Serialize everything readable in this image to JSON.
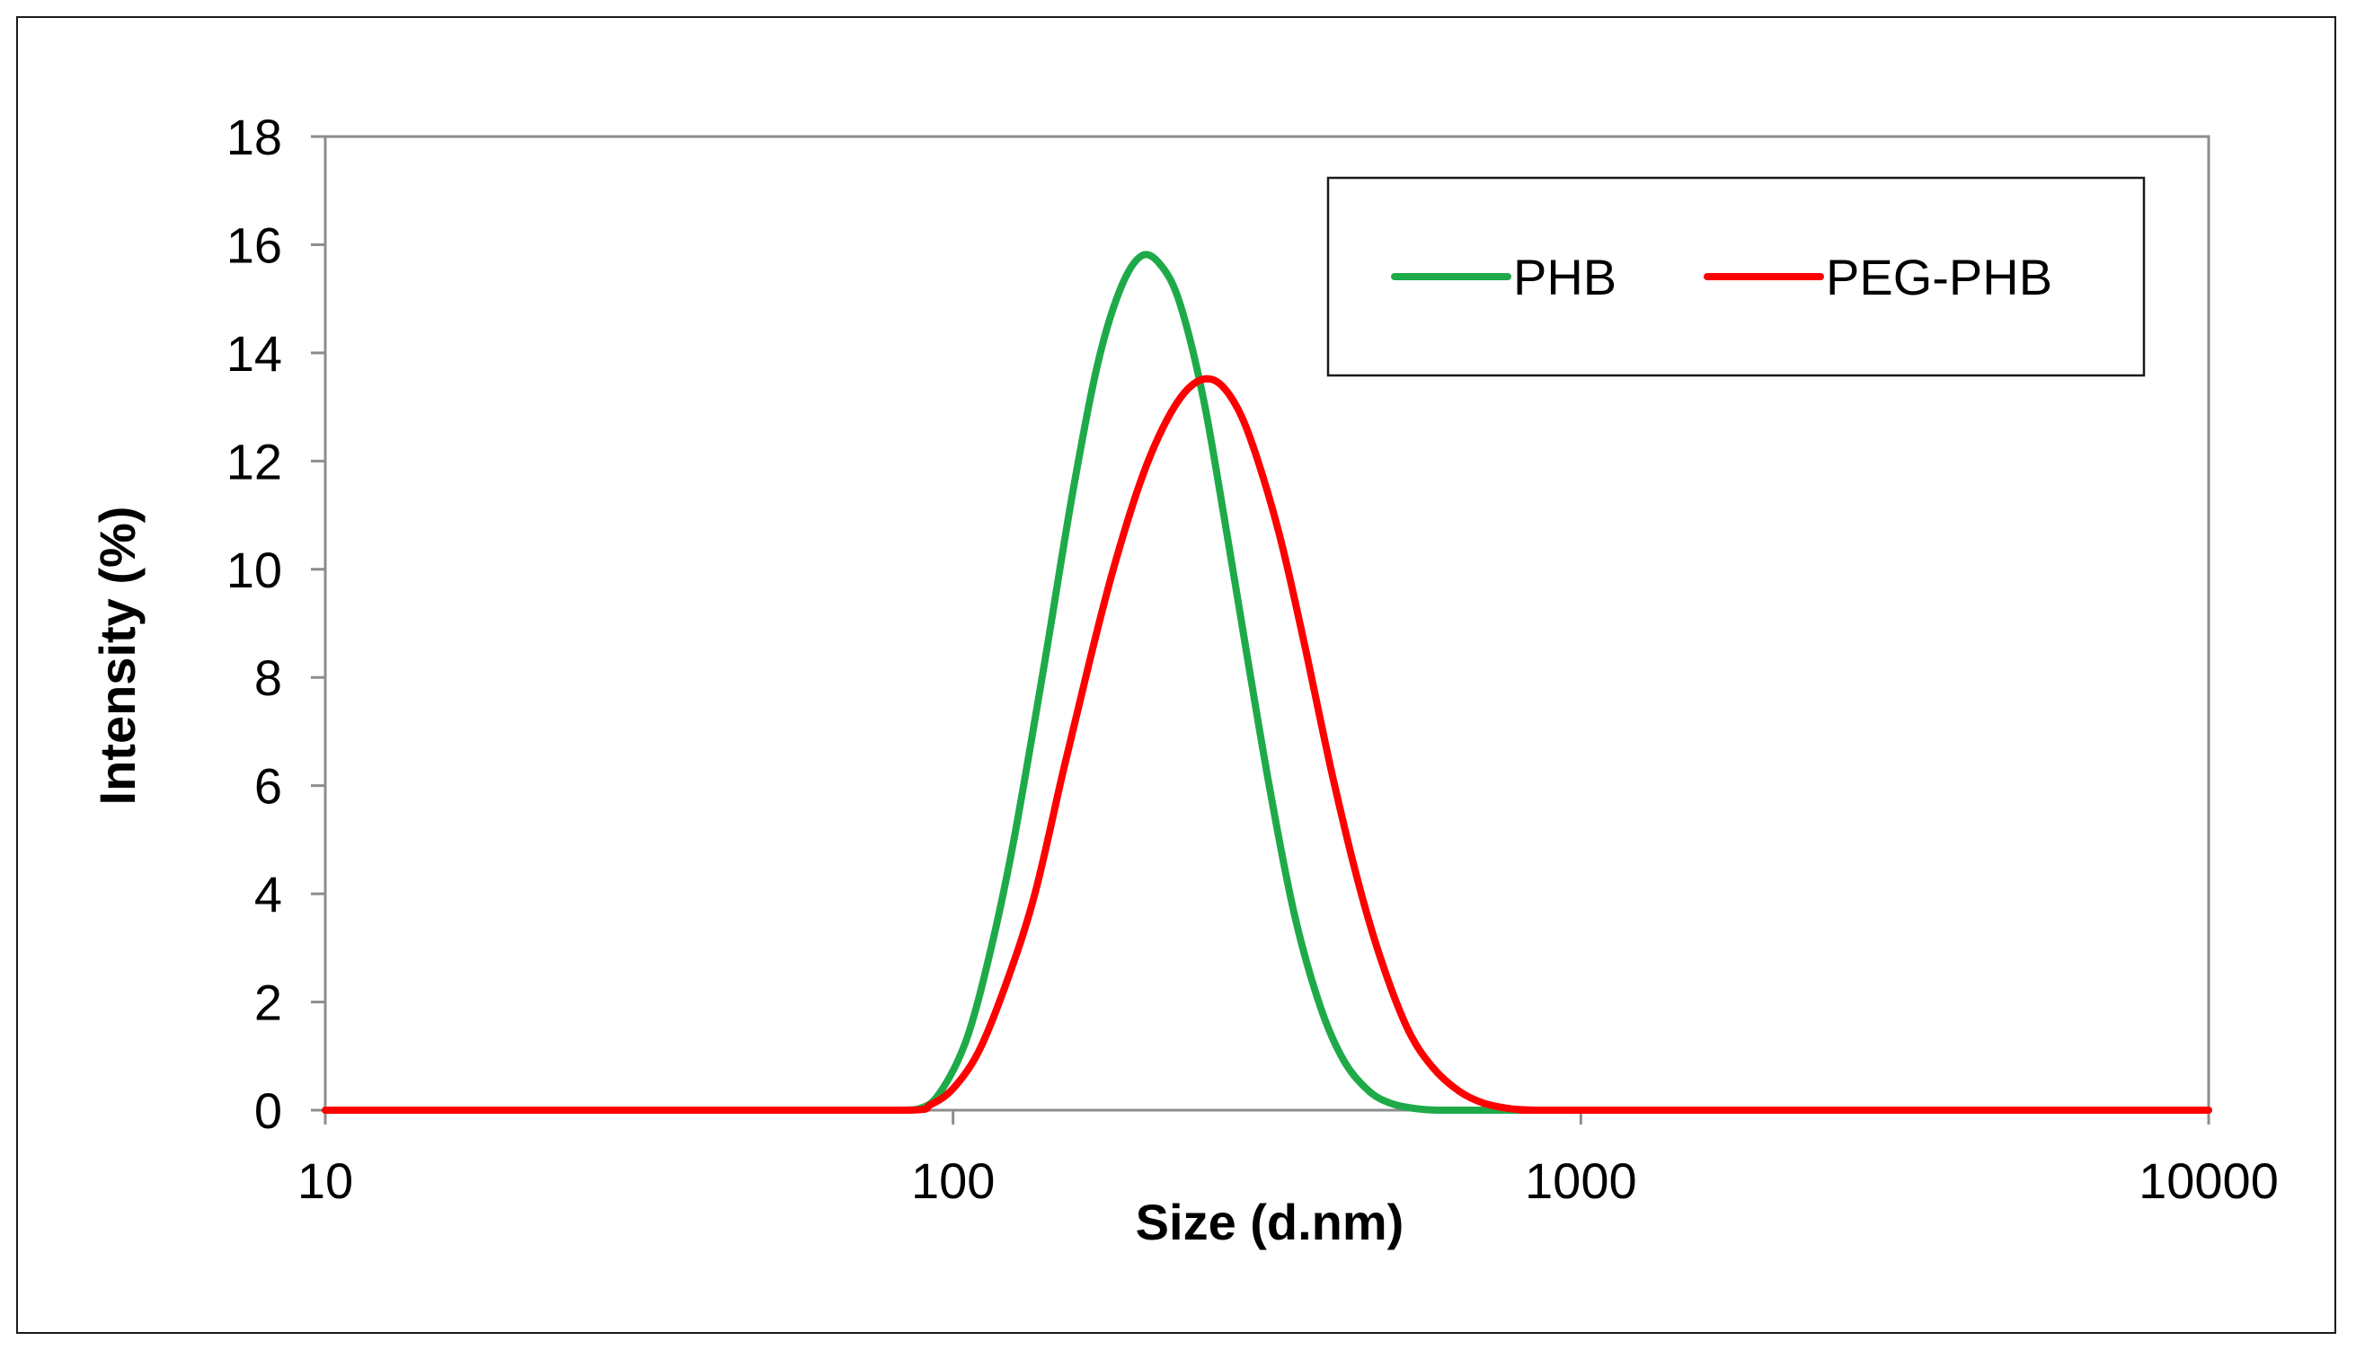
{
  "chart_data": {
    "type": "line",
    "title": "",
    "xlabel": "Size (d.nm)",
    "ylabel": "Intensity (%)",
    "x_scale": "log",
    "xlim": [
      10,
      10000
    ],
    "ylim": [
      0,
      18
    ],
    "x_ticks": [
      10,
      100,
      1000,
      10000
    ],
    "x_tick_labels": [
      "10",
      "100",
      "1000",
      "10000"
    ],
    "y_ticks": [
      0,
      2,
      4,
      6,
      8,
      10,
      12,
      14,
      16,
      18
    ],
    "y_tick_labels": [
      "0",
      "2",
      "4",
      "6",
      "8",
      "10",
      "12",
      "14",
      "16",
      "18"
    ],
    "grid": false,
    "legend_position": "top-right",
    "series": [
      {
        "name": "PHB",
        "color": "#1faa4a",
        "x": [
          10,
          50,
          80,
          88,
          95,
          105,
          115,
          125,
          140,
          155,
          170,
          185,
          200,
          215,
          230,
          250,
          270,
          295,
          320,
          350,
          385,
          420,
          460,
          500,
          545,
          590,
          700,
          1000,
          10000
        ],
        "y": [
          0,
          0,
          0,
          0.02,
          0.3,
          1.3,
          3.0,
          5.0,
          8.3,
          11.4,
          13.8,
          15.2,
          15.8,
          15.6,
          14.9,
          13.2,
          11.0,
          8.3,
          5.9,
          3.6,
          1.9,
          0.9,
          0.35,
          0.12,
          0.03,
          0,
          0,
          0,
          0
        ]
      },
      {
        "name": "PEG-PHB",
        "color": "#ff0000",
        "x": [
          10,
          50,
          85,
          92,
          100,
          110,
          122,
          135,
          150,
          165,
          180,
          200,
          220,
          240,
          260,
          280,
          300,
          330,
          360,
          400,
          440,
          480,
          530,
          580,
          640,
          700,
          770,
          850,
          1000,
          10000
        ],
        "y": [
          0,
          0,
          0,
          0.1,
          0.4,
          1.1,
          2.4,
          4.0,
          6.3,
          8.3,
          10.0,
          11.7,
          12.8,
          13.4,
          13.5,
          13.1,
          12.3,
          10.7,
          8.8,
          6.3,
          4.3,
          2.8,
          1.5,
          0.8,
          0.35,
          0.13,
          0.03,
          0,
          0,
          0
        ]
      }
    ]
  }
}
